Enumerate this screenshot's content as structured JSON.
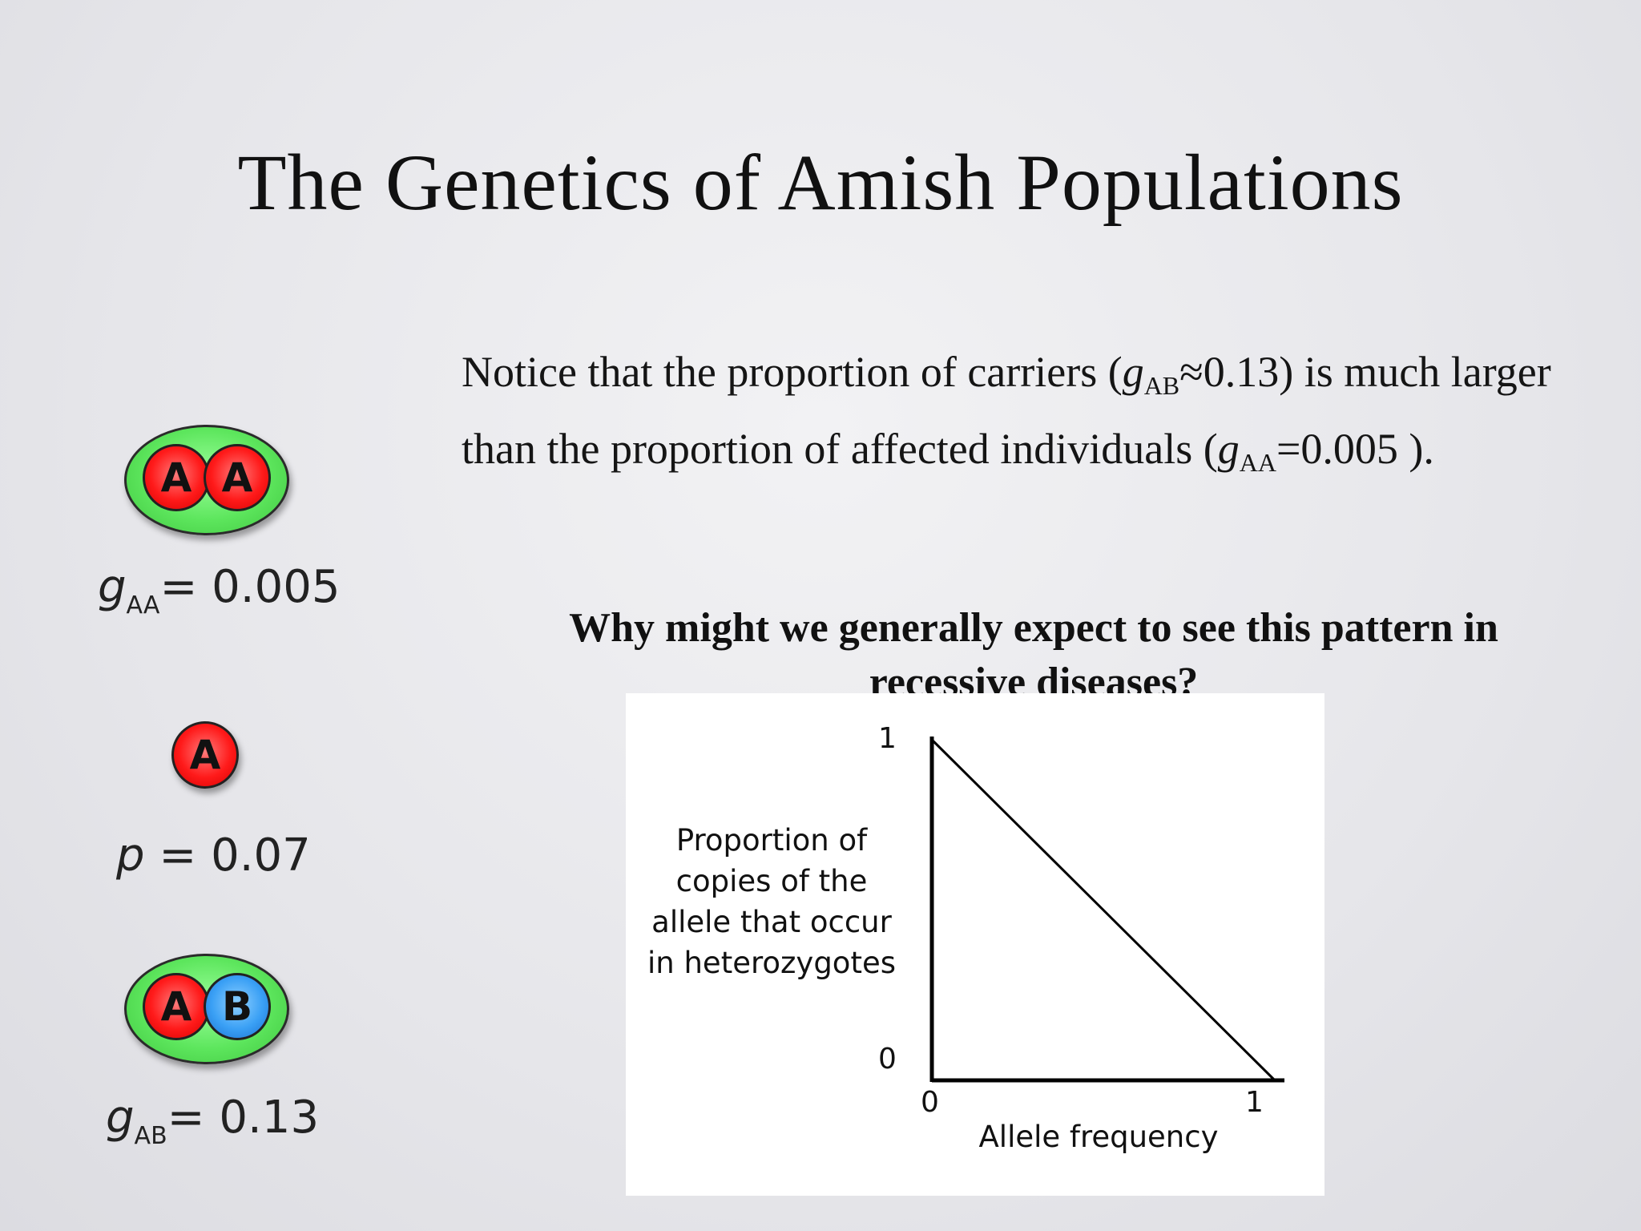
{
  "slide": {
    "title": "The Genetics of Amish Populations",
    "note": {
      "part1": "Notice that the proportion of carriers (",
      "var1": "g",
      "sub1": "AB",
      "part2": "≈0.13) is much larger than the proportion of affected individuals (",
      "var2": "g",
      "sub2": "AA",
      "part3": "=0.005 )."
    },
    "question": "Why might we generally expect to see this pattern in recessive diseases?"
  },
  "genotypes": {
    "aa": {
      "allele1": "A",
      "allele2": "A",
      "var": "g",
      "sub": "AA",
      "value": "= 0.005"
    },
    "single": {
      "allele": "A",
      "var": "p",
      "value": " = 0.07"
    },
    "ab": {
      "allele1": "A",
      "allele2": "B",
      "var": "g",
      "sub": "AB",
      "value": "= 0.13"
    }
  },
  "colors": {
    "genotype_fill": "#5de65d",
    "allele_a": "#ff1a1a",
    "allele_b": "#3aa0f5"
  },
  "chart_data": {
    "type": "line",
    "title": "",
    "xlabel": "Allele frequency",
    "ylabel": "Proportion of copies of the allele that occur in heterozygotes",
    "x": [
      0,
      1
    ],
    "series": [
      {
        "values": [
          1,
          0
        ]
      }
    ],
    "xlim": [
      0,
      1
    ],
    "ylim": [
      0,
      1
    ],
    "xticks": [
      "0",
      "1"
    ],
    "yticks": [
      "0",
      "1"
    ],
    "grid": false
  }
}
